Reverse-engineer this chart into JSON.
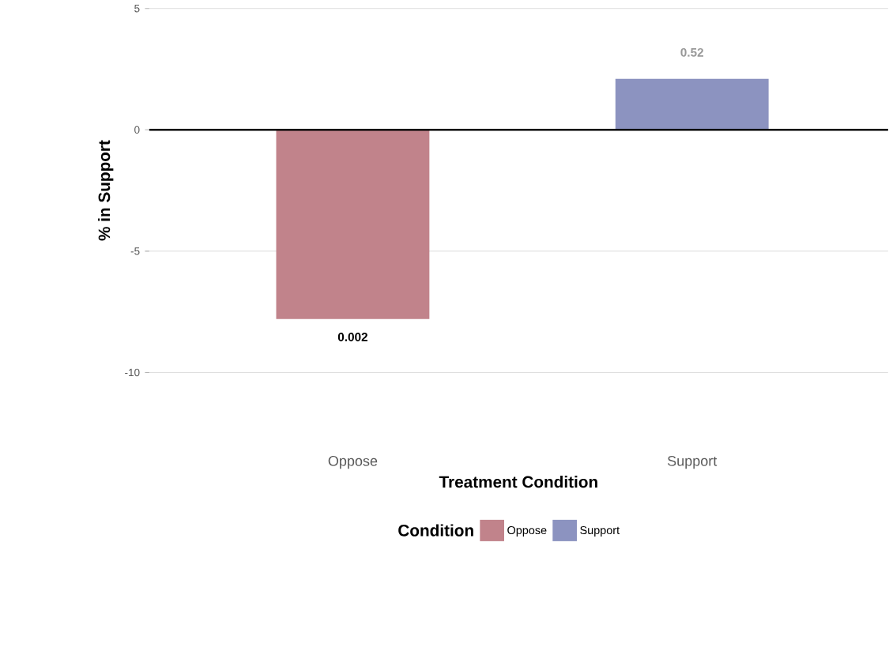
{
  "chart_data": {
    "type": "bar",
    "xlabel": "Treatment Condition",
    "ylabel": "% in Support",
    "legend_title": "Condition",
    "categories": [
      "Oppose",
      "Support"
    ],
    "series": [
      {
        "name": "Oppose",
        "color": "#c1838b",
        "values": [
          -7.8,
          null
        ]
      },
      {
        "name": "Support",
        "color": "#8c93c0",
        "values": [
          null,
          2.1
        ]
      }
    ],
    "ylim": [
      -10,
      5
    ],
    "yticks": [
      -10,
      -5,
      0,
      5
    ],
    "grid": "y",
    "legend": "bottom",
    "ref_lines": [
      {
        "axis": "y",
        "value": 0,
        "color": "#000000"
      }
    ],
    "annotations": [
      {
        "text": "0.002",
        "x": "Oppose",
        "y": -7.8
      },
      {
        "text": "0.52",
        "x": "Support",
        "y": 2.1
      }
    ]
  }
}
